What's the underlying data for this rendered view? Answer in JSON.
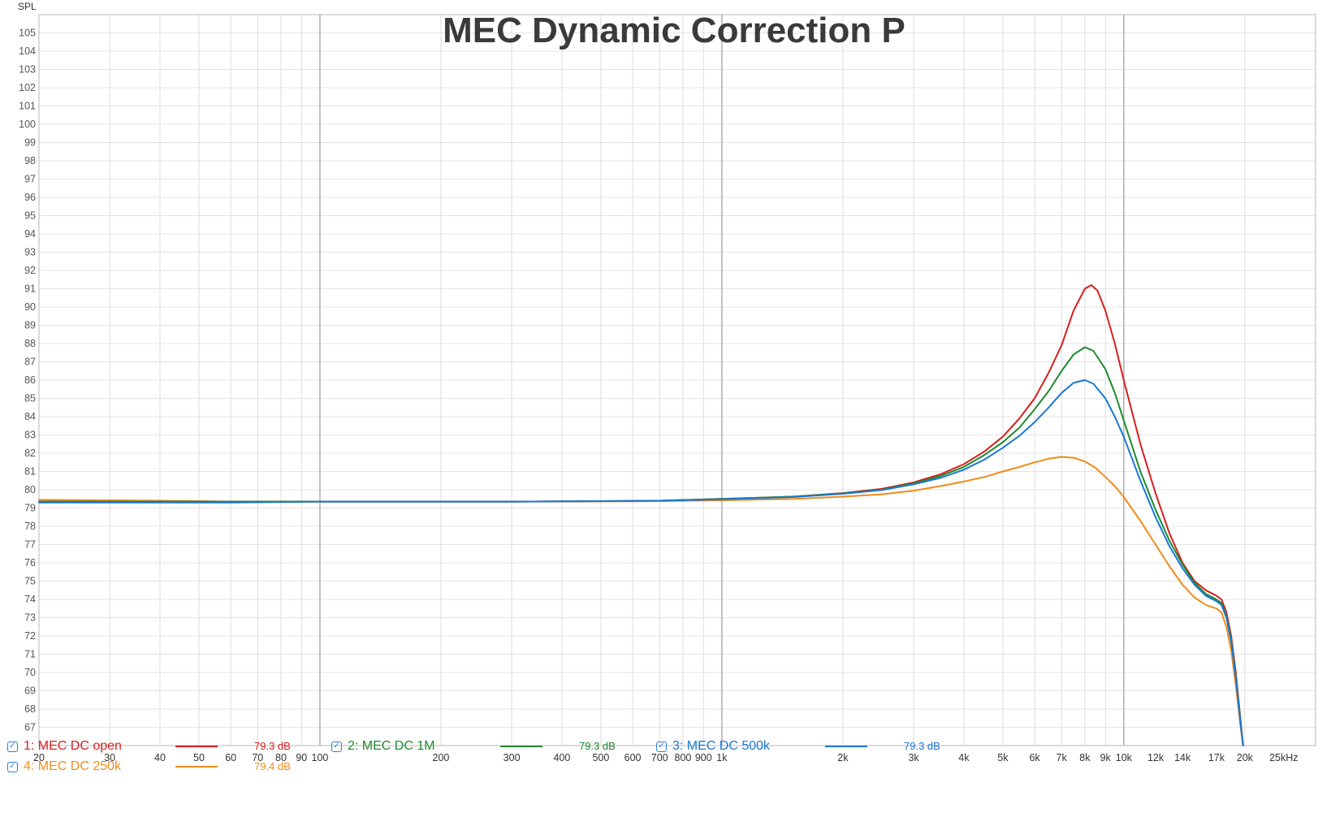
{
  "chart_data": {
    "type": "line",
    "title": "MEC Dynamic Correction P",
    "ylabel": "SPL",
    "xlabel": "",
    "x_scale": "log",
    "xlim": [
      20,
      30000
    ],
    "ylim": [
      66,
      106
    ],
    "grid": true,
    "x_ticks": [
      {
        "v": 20,
        "label": "20"
      },
      {
        "v": 30,
        "label": "30"
      },
      {
        "v": 40,
        "label": "40"
      },
      {
        "v": 50,
        "label": "50"
      },
      {
        "v": 60,
        "label": "60"
      },
      {
        "v": 70,
        "label": "70"
      },
      {
        "v": 80,
        "label": "80"
      },
      {
        "v": 90,
        "label": "90"
      },
      {
        "v": 100,
        "label": "100"
      },
      {
        "v": 200,
        "label": "200"
      },
      {
        "v": 300,
        "label": "300"
      },
      {
        "v": 400,
        "label": "400"
      },
      {
        "v": 500,
        "label": "500"
      },
      {
        "v": 600,
        "label": "600"
      },
      {
        "v": 700,
        "label": "700"
      },
      {
        "v": 800,
        "label": "800"
      },
      {
        "v": 900,
        "label": "900"
      },
      {
        "v": 1000,
        "label": "1k"
      },
      {
        "v": 2000,
        "label": "2k"
      },
      {
        "v": 3000,
        "label": "3k"
      },
      {
        "v": 4000,
        "label": "4k"
      },
      {
        "v": 5000,
        "label": "5k"
      },
      {
        "v": 6000,
        "label": "6k"
      },
      {
        "v": 7000,
        "label": "7k"
      },
      {
        "v": 8000,
        "label": "8k"
      },
      {
        "v": 9000,
        "label": "9k"
      },
      {
        "v": 10000,
        "label": "10k"
      },
      {
        "v": 12000,
        "label": "12k"
      },
      {
        "v": 14000,
        "label": "14k"
      },
      {
        "v": 17000,
        "label": "17k"
      },
      {
        "v": 20000,
        "label": "20k"
      },
      {
        "v": 25000,
        "label": "25kHz"
      }
    ],
    "y_ticks": [
      67,
      68,
      69,
      70,
      71,
      72,
      73,
      74,
      75,
      76,
      77,
      78,
      79,
      80,
      81,
      82,
      83,
      84,
      85,
      86,
      87,
      88,
      89,
      90,
      91,
      92,
      93,
      94,
      95,
      96,
      97,
      98,
      99,
      100,
      101,
      102,
      103,
      104,
      105
    ],
    "legend_placement": "bottom",
    "series": [
      {
        "name": "1: MEC DC open",
        "color": "#d81e1e",
        "readout": "79.3 dB",
        "points": [
          [
            20,
            79.35
          ],
          [
            30,
            79.35
          ],
          [
            40,
            79.35
          ],
          [
            50,
            79.35
          ],
          [
            60,
            79.35
          ],
          [
            100,
            79.35
          ],
          [
            200,
            79.35
          ],
          [
            300,
            79.35
          ],
          [
            500,
            79.38
          ],
          [
            700,
            79.4
          ],
          [
            1000,
            79.5
          ],
          [
            1500,
            79.62
          ],
          [
            2000,
            79.82
          ],
          [
            2500,
            80.05
          ],
          [
            3000,
            80.4
          ],
          [
            3500,
            80.85
          ],
          [
            4000,
            81.4
          ],
          [
            4500,
            82.1
          ],
          [
            5000,
            82.9
          ],
          [
            5500,
            83.9
          ],
          [
            6000,
            85.0
          ],
          [
            6500,
            86.4
          ],
          [
            7000,
            87.9
          ],
          [
            7500,
            89.8
          ],
          [
            8000,
            91.0
          ],
          [
            8300,
            91.2
          ],
          [
            8600,
            90.9
          ],
          [
            9000,
            89.8
          ],
          [
            9500,
            88.0
          ],
          [
            10000,
            86.0
          ],
          [
            11000,
            82.5
          ],
          [
            12000,
            79.8
          ],
          [
            13000,
            77.6
          ],
          [
            14000,
            76.0
          ],
          [
            15000,
            75.0
          ],
          [
            16000,
            74.5
          ],
          [
            17000,
            74.2
          ],
          [
            17500,
            74.0
          ],
          [
            18000,
            73.3
          ],
          [
            18500,
            72.0
          ],
          [
            19000,
            70.0
          ],
          [
            19500,
            67.5
          ],
          [
            19800,
            66.0
          ]
        ]
      },
      {
        "name": "2: MEC DC 1M",
        "color": "#1e8a2e",
        "readout": "79.3 dB",
        "points": [
          [
            20,
            79.35
          ],
          [
            30,
            79.35
          ],
          [
            40,
            79.35
          ],
          [
            50,
            79.35
          ],
          [
            60,
            79.35
          ],
          [
            100,
            79.35
          ],
          [
            200,
            79.35
          ],
          [
            300,
            79.35
          ],
          [
            500,
            79.38
          ],
          [
            700,
            79.4
          ],
          [
            1000,
            79.5
          ],
          [
            1500,
            79.62
          ],
          [
            2000,
            79.8
          ],
          [
            2500,
            80.0
          ],
          [
            3000,
            80.35
          ],
          [
            3500,
            80.75
          ],
          [
            4000,
            81.25
          ],
          [
            4500,
            81.9
          ],
          [
            5000,
            82.6
          ],
          [
            5500,
            83.4
          ],
          [
            6000,
            84.4
          ],
          [
            6500,
            85.4
          ],
          [
            7000,
            86.5
          ],
          [
            7500,
            87.4
          ],
          [
            8000,
            87.8
          ],
          [
            8400,
            87.6
          ],
          [
            9000,
            86.6
          ],
          [
            9500,
            85.3
          ],
          [
            10000,
            83.8
          ],
          [
            11000,
            81.0
          ],
          [
            12000,
            78.9
          ],
          [
            13000,
            77.2
          ],
          [
            14000,
            75.9
          ],
          [
            15000,
            74.9
          ],
          [
            16000,
            74.3
          ],
          [
            17000,
            74.0
          ],
          [
            17500,
            73.8
          ],
          [
            18000,
            73.1
          ],
          [
            18500,
            71.8
          ],
          [
            19000,
            69.8
          ],
          [
            19500,
            67.4
          ],
          [
            19800,
            66.0
          ]
        ]
      },
      {
        "name": "3: MEC DC 500k",
        "color": "#1a78d6",
        "readout": "79.3 dB",
        "points": [
          [
            20,
            79.3
          ],
          [
            30,
            79.3
          ],
          [
            40,
            79.3
          ],
          [
            50,
            79.3
          ],
          [
            60,
            79.3
          ],
          [
            100,
            79.35
          ],
          [
            200,
            79.35
          ],
          [
            300,
            79.35
          ],
          [
            500,
            79.38
          ],
          [
            700,
            79.4
          ],
          [
            1000,
            79.48
          ],
          [
            1500,
            79.6
          ],
          [
            2000,
            79.78
          ],
          [
            2500,
            79.98
          ],
          [
            3000,
            80.3
          ],
          [
            3500,
            80.65
          ],
          [
            4000,
            81.1
          ],
          [
            4500,
            81.65
          ],
          [
            5000,
            82.3
          ],
          [
            5500,
            82.95
          ],
          [
            6000,
            83.7
          ],
          [
            6500,
            84.5
          ],
          [
            7000,
            85.3
          ],
          [
            7500,
            85.85
          ],
          [
            8000,
            86.0
          ],
          [
            8400,
            85.8
          ],
          [
            9000,
            85.0
          ],
          [
            9500,
            84.0
          ],
          [
            10000,
            82.9
          ],
          [
            11000,
            80.5
          ],
          [
            12000,
            78.5
          ],
          [
            13000,
            76.9
          ],
          [
            14000,
            75.7
          ],
          [
            15000,
            74.8
          ],
          [
            16000,
            74.2
          ],
          [
            17000,
            73.9
          ],
          [
            17500,
            73.7
          ],
          [
            18000,
            73.0
          ],
          [
            18500,
            71.7
          ],
          [
            19000,
            69.7
          ],
          [
            19500,
            67.3
          ],
          [
            19800,
            66.0
          ]
        ]
      },
      {
        "name": "4: MEC DC 250k",
        "color": "#f08c1a",
        "readout": "79.4 dB",
        "points": [
          [
            20,
            79.45
          ],
          [
            30,
            79.42
          ],
          [
            40,
            79.4
          ],
          [
            50,
            79.38
          ],
          [
            60,
            79.35
          ],
          [
            100,
            79.35
          ],
          [
            200,
            79.35
          ],
          [
            300,
            79.35
          ],
          [
            500,
            79.36
          ],
          [
            700,
            79.38
          ],
          [
            1000,
            79.42
          ],
          [
            1500,
            79.5
          ],
          [
            2000,
            79.62
          ],
          [
            2500,
            79.75
          ],
          [
            3000,
            79.95
          ],
          [
            3500,
            80.2
          ],
          [
            4000,
            80.45
          ],
          [
            4500,
            80.7
          ],
          [
            5000,
            81.0
          ],
          [
            5500,
            81.25
          ],
          [
            6000,
            81.5
          ],
          [
            6500,
            81.7
          ],
          [
            7000,
            81.8
          ],
          [
            7500,
            81.75
          ],
          [
            8000,
            81.55
          ],
          [
            8500,
            81.2
          ],
          [
            9000,
            80.7
          ],
          [
            9500,
            80.2
          ],
          [
            10000,
            79.6
          ],
          [
            11000,
            78.3
          ],
          [
            12000,
            77.0
          ],
          [
            13000,
            75.8
          ],
          [
            14000,
            74.8
          ],
          [
            15000,
            74.1
          ],
          [
            16000,
            73.7
          ],
          [
            17000,
            73.5
          ],
          [
            17500,
            73.3
          ],
          [
            18000,
            72.5
          ],
          [
            18500,
            71.2
          ],
          [
            19000,
            69.3
          ],
          [
            19500,
            67.1
          ],
          [
            19800,
            66.0
          ]
        ]
      }
    ]
  }
}
